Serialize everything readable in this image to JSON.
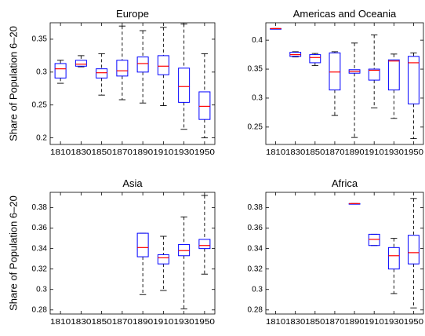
{
  "chart_data": [
    {
      "type": "box",
      "title": "Europe",
      "ylabel": "Share of Population 6–20",
      "categories": [
        "1810",
        "1830",
        "1850",
        "1870",
        "1890",
        "1910",
        "1930",
        "1950"
      ],
      "ylim": [
        0.19,
        0.375
      ],
      "yticks": [
        0.2,
        0.25,
        0.3,
        0.35
      ],
      "ytick_labels": [
        "0.2",
        "0.25",
        "0.3",
        "0.35"
      ],
      "boxes": [
        {
          "x": "1810",
          "whislo": 0.283,
          "q1": 0.291,
          "med": 0.305,
          "q3": 0.313,
          "whishi": 0.318
        },
        {
          "x": "1830",
          "whislo": 0.308,
          "q1": 0.309,
          "med": 0.312,
          "q3": 0.318,
          "whishi": 0.325
        },
        {
          "x": "1850",
          "whislo": 0.265,
          "q1": 0.291,
          "med": 0.299,
          "q3": 0.305,
          "whishi": 0.328
        },
        {
          "x": "1870",
          "whislo": 0.258,
          "q1": 0.294,
          "med": 0.302,
          "q3": 0.318,
          "whishi": 0.37
        },
        {
          "x": "1890",
          "whislo": 0.253,
          "q1": 0.3,
          "med": 0.313,
          "q3": 0.323,
          "whishi": 0.363
        },
        {
          "x": "1910",
          "whislo": 0.249,
          "q1": 0.296,
          "med": 0.309,
          "q3": 0.325,
          "whishi": 0.368
        },
        {
          "x": "1930",
          "whislo": 0.213,
          "q1": 0.254,
          "med": 0.278,
          "q3": 0.306,
          "whishi": 0.373
        },
        {
          "x": "1950",
          "whislo": 0.2,
          "q1": 0.228,
          "med": 0.248,
          "q3": 0.27,
          "whishi": 0.328
        }
      ]
    },
    {
      "type": "box",
      "title": "Americas and Oceania",
      "ylabel": "",
      "categories": [
        "1810",
        "1830",
        "1850",
        "1870",
        "1890",
        "1910",
        "1930",
        "1950"
      ],
      "ylim": [
        0.22,
        0.43
      ],
      "yticks": [
        0.25,
        0.3,
        0.35,
        0.4
      ],
      "ytick_labels": [
        "0.25",
        "0.3",
        "0.35",
        "0.4"
      ],
      "boxes": [
        {
          "x": "1810",
          "whislo": 0.42,
          "q1": 0.42,
          "med": 0.42,
          "q3": 0.42,
          "whishi": 0.42
        },
        {
          "x": "1830",
          "whislo": 0.371,
          "q1": 0.372,
          "med": 0.375,
          "q3": 0.379,
          "whishi": 0.38
        },
        {
          "x": "1850",
          "whislo": 0.356,
          "q1": 0.361,
          "med": 0.37,
          "q3": 0.375,
          "whishi": 0.377
        },
        {
          "x": "1870",
          "whislo": 0.27,
          "q1": 0.314,
          "med": 0.345,
          "q3": 0.378,
          "whishi": 0.38
        },
        {
          "x": "1890",
          "whislo": 0.232,
          "q1": 0.343,
          "med": 0.346,
          "q3": 0.349,
          "whishi": 0.395
        },
        {
          "x": "1910",
          "whislo": 0.283,
          "q1": 0.331,
          "med": 0.348,
          "q3": 0.35,
          "whishi": 0.409
        },
        {
          "x": "1930",
          "whislo": 0.265,
          "q1": 0.314,
          "med": 0.364,
          "q3": 0.366,
          "whishi": 0.376
        },
        {
          "x": "1950",
          "whislo": 0.23,
          "q1": 0.29,
          "med": 0.361,
          "q3": 0.372,
          "whishi": 0.378
        }
      ]
    },
    {
      "type": "box",
      "title": "Asia",
      "ylabel": "Share of Population 6–20",
      "categories": [
        "1810",
        "1830",
        "1850",
        "1870",
        "1890",
        "1910",
        "1930",
        "1950"
      ],
      "ylim": [
        0.276,
        0.395
      ],
      "yticks": [
        0.28,
        0.3,
        0.32,
        0.34,
        0.36,
        0.38
      ],
      "ytick_labels": [
        "0.28",
        "0.3",
        "0.32",
        "0.34",
        "0.36",
        "0.38"
      ],
      "boxes": [
        {
          "x": "1890",
          "whislo": 0.295,
          "q1": 0.332,
          "med": 0.341,
          "q3": 0.355,
          "whishi": 0.355
        },
        {
          "x": "1910",
          "whislo": 0.299,
          "q1": 0.325,
          "med": 0.331,
          "q3": 0.334,
          "whishi": 0.352
        },
        {
          "x": "1930",
          "whislo": 0.281,
          "q1": 0.333,
          "med": 0.338,
          "q3": 0.344,
          "whishi": 0.371
        },
        {
          "x": "1950",
          "whislo": 0.315,
          "q1": 0.34,
          "med": 0.343,
          "q3": 0.349,
          "whishi": 0.392
        }
      ]
    },
    {
      "type": "box",
      "title": "Africa",
      "ylabel": "",
      "categories": [
        "1810",
        "1830",
        "1850",
        "1870",
        "1890",
        "1910",
        "1930",
        "1950"
      ],
      "ylim": [
        0.276,
        0.395
      ],
      "yticks": [
        0.28,
        0.3,
        0.32,
        0.34,
        0.36,
        0.38
      ],
      "ytick_labels": [
        "0.28",
        "0.3",
        "0.32",
        "0.34",
        "0.36",
        "0.38"
      ],
      "boxes": [
        {
          "x": "1890",
          "whislo": 0.384,
          "q1": 0.384,
          "med": 0.384,
          "q3": 0.384,
          "whishi": 0.384
        },
        {
          "x": "1910",
          "whislo": 0.343,
          "q1": 0.343,
          "med": 0.349,
          "q3": 0.354,
          "whishi": 0.354
        },
        {
          "x": "1930",
          "whislo": 0.296,
          "q1": 0.32,
          "med": 0.333,
          "q3": 0.341,
          "whishi": 0.35
        },
        {
          "x": "1950",
          "whislo": 0.282,
          "q1": 0.325,
          "med": 0.336,
          "q3": 0.353,
          "whishi": 0.389
        }
      ]
    }
  ]
}
